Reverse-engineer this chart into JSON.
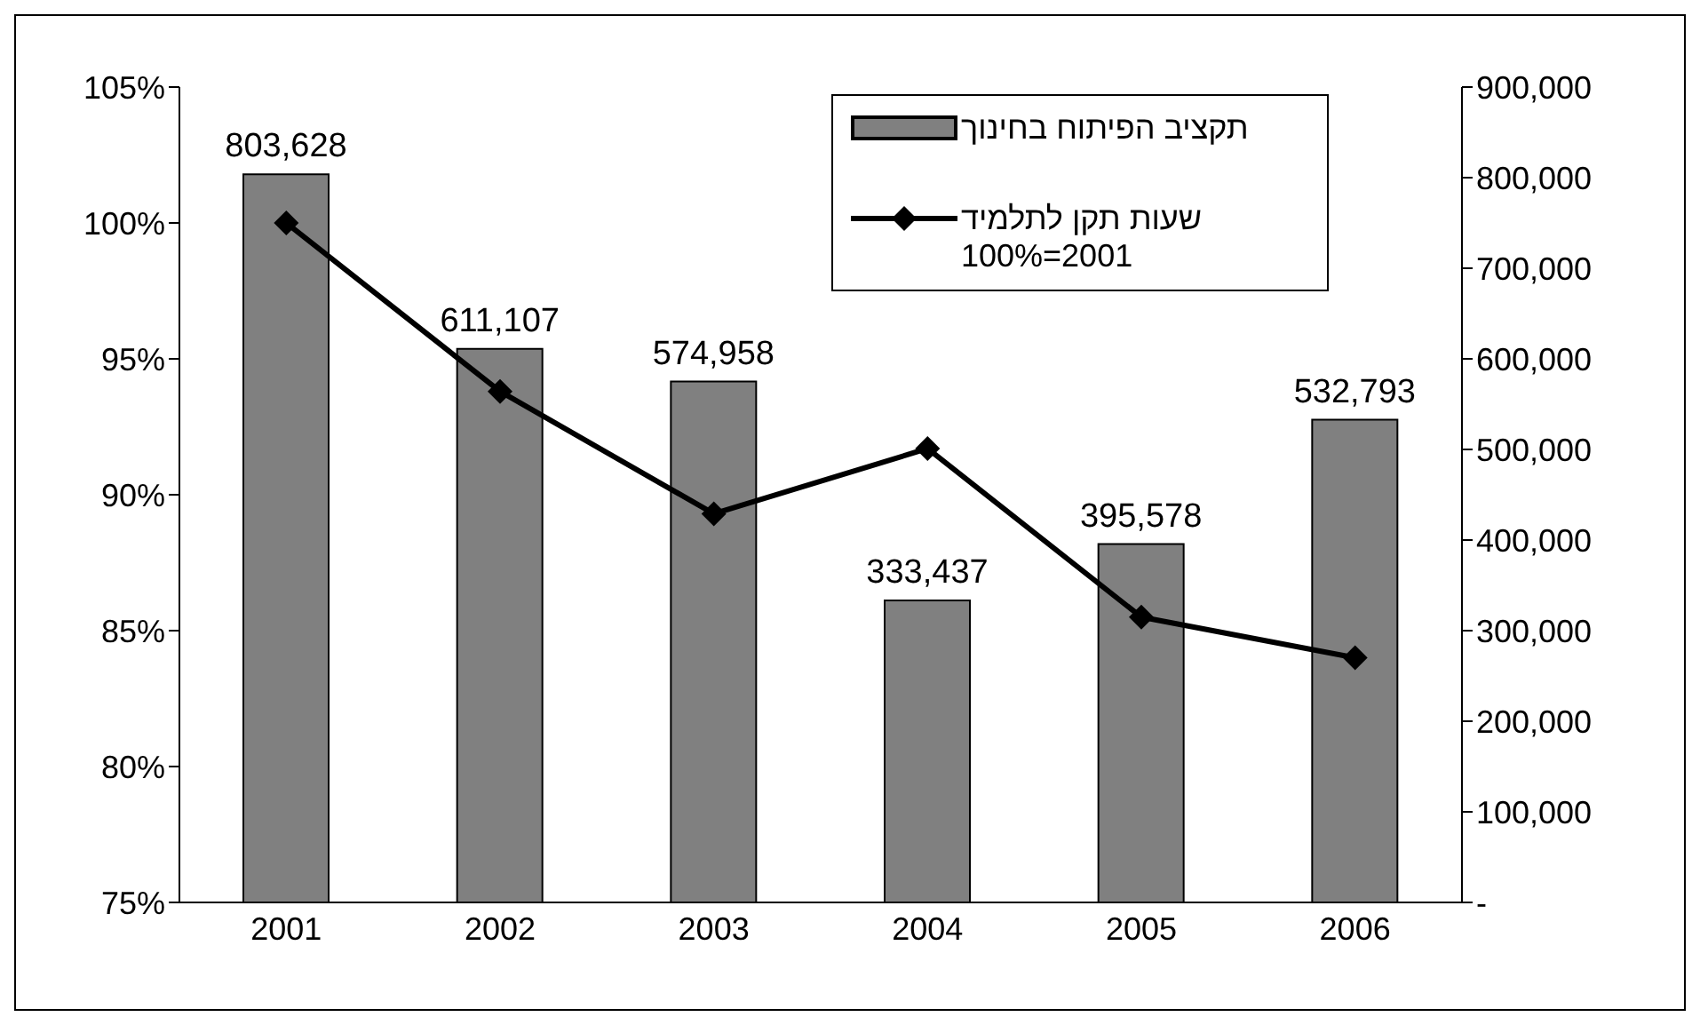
{
  "chart_data": {
    "type": "bar",
    "categories": [
      "2001",
      "2002",
      "2003",
      "2004",
      "2005",
      "2006"
    ],
    "series": [
      {
        "name": "תקציב הפיתוח בחינוך",
        "axis": "y2",
        "color": "#808080",
        "values": [
          803628,
          611107,
          574958,
          333437,
          395578,
          532793
        ],
        "value_labels": [
          "803,628",
          "611,107",
          "574,958",
          "333,437",
          "395,578",
          "532,793"
        ]
      },
      {
        "name": "שעות תקן לתלמיד\n100%=2001",
        "type": "line",
        "axis": "y",
        "color": "#000000",
        "values": [
          100,
          93.8,
          89.3,
          91.7,
          85.5,
          84.0
        ]
      }
    ],
    "ylim": [
      75,
      105
    ],
    "yticks": [
      {
        "value": 75,
        "label": "75%"
      },
      {
        "value": 80,
        "label": "80%"
      },
      {
        "value": 85,
        "label": "85%"
      },
      {
        "value": 90,
        "label": "90%"
      },
      {
        "value": 95,
        "label": "95%"
      },
      {
        "value": 100,
        "label": "100%"
      },
      {
        "value": 105,
        "label": "105%"
      }
    ],
    "y2lim": [
      0,
      900000
    ],
    "y2ticks": [
      {
        "value": 0,
        "label": "-"
      },
      {
        "value": 100000,
        "label": "100,000"
      },
      {
        "value": 200000,
        "label": "200,000"
      },
      {
        "value": 300000,
        "label": "300,000"
      },
      {
        "value": 400000,
        "label": "400,000"
      },
      {
        "value": 500000,
        "label": "500,000"
      },
      {
        "value": 600000,
        "label": "600,000"
      },
      {
        "value": 700000,
        "label": "700,000"
      },
      {
        "value": 800000,
        "label": "800,000"
      },
      {
        "value": 900000,
        "label": "900,000"
      }
    ],
    "marker": "diamond",
    "line_style": "solid",
    "grid": false,
    "legend": "top right"
  }
}
